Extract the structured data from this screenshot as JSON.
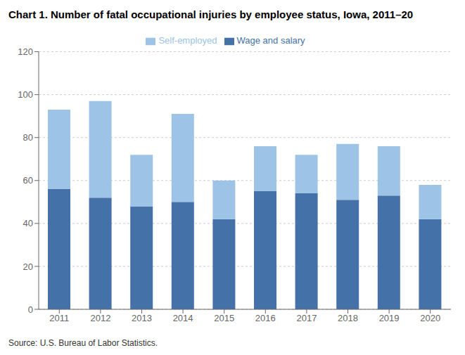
{
  "chart_data": {
    "type": "bar",
    "title": "Chart 1. Number of fatal occupational injuries by employee status, Iowa, 2011–20",
    "categories": [
      "2011",
      "2012",
      "2013",
      "2014",
      "2015",
      "2016",
      "2017",
      "2018",
      "2019",
      "2020"
    ],
    "series": [
      {
        "name": "Wage and salary",
        "color": "#4472A8",
        "values": [
          56,
          52,
          48,
          50,
          42,
          55,
          54,
          51,
          53,
          42
        ]
      },
      {
        "name": "Self-employed",
        "color": "#9DC3E6",
        "values": [
          37,
          45,
          24,
          41,
          18,
          21,
          18,
          26,
          23,
          16
        ]
      }
    ],
    "stacked": true,
    "ylim": [
      0,
      120
    ],
    "yticks": [
      0,
      20,
      40,
      60,
      80,
      100,
      120
    ],
    "grid": true,
    "legend": "top",
    "annotations": [
      "Source: U.S. Bureau of Labor Statistics."
    ]
  }
}
